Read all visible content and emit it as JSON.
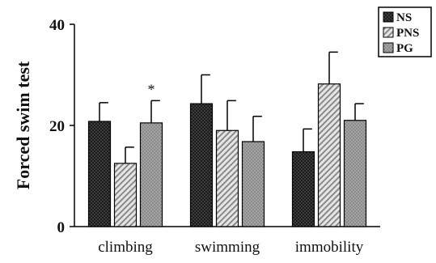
{
  "chart_data": {
    "type": "bar",
    "ylabel": "Forced swim test",
    "xlabel": "",
    "ylim": [
      0,
      40
    ],
    "yticks": [
      "0",
      "20",
      "40"
    ],
    "categories": [
      "climbing",
      "swimming",
      "immobility"
    ],
    "series": [
      {
        "name": "NS",
        "pattern": "dots-dark",
        "values": [
          20.8,
          24.3,
          14.8
        ],
        "errors": [
          3.7,
          5.7,
          4.5
        ]
      },
      {
        "name": "PNS",
        "pattern": "hatch-light",
        "values": [
          12.5,
          19.0,
          28.2
        ],
        "errors": [
          3.2,
          5.9,
          6.3
        ]
      },
      {
        "name": "PG",
        "pattern": "dots-grey",
        "values": [
          20.5,
          16.8,
          21.0
        ],
        "errors": [
          4.4,
          5.0,
          3.3
        ]
      }
    ],
    "annotations": [
      {
        "text": "*",
        "category": "climbing",
        "series": "PG"
      }
    ],
    "legend_position": "top-right",
    "grid": false,
    "colors": {
      "NS": "#1c1c1c",
      "PNS": "#d8d8d8",
      "PG": "#8a8a8a",
      "axis": "#000000"
    }
  }
}
